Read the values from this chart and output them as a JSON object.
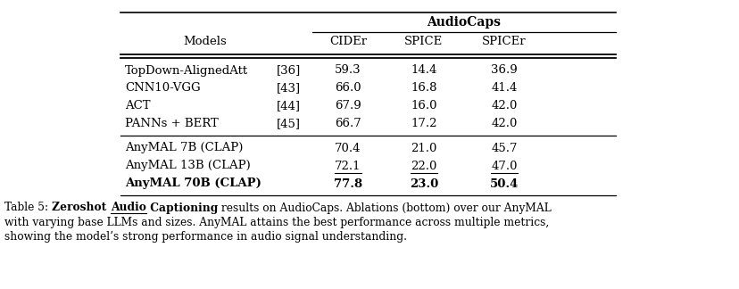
{
  "title_group": "AudioCaps",
  "col_headers": [
    "CIDEr",
    "SPICE",
    "SPICEr"
  ],
  "models_col_header": "Models",
  "rows_group1": [
    {
      "model": "TopDown-AlignedAtt",
      "ref": "[36]",
      "cider": "59.3",
      "spice": "14.4",
      "spicer": "36.9"
    },
    {
      "model": "CNN10-VGG",
      "ref": "[43]",
      "cider": "66.0",
      "spice": "16.8",
      "spicer": "41.4"
    },
    {
      "model": "ACT",
      "ref": "[44]",
      "cider": "67.9",
      "spice": "16.0",
      "spicer": "42.0"
    },
    {
      "model": "PANNs + BERT",
      "ref": "[45]",
      "cider": "66.7",
      "spice": "17.2",
      "spicer": "42.0"
    }
  ],
  "rows_group2": [
    {
      "model": "AnyMAL 7B (CLAP)",
      "cider": "70.4",
      "spice": "21.0",
      "spicer": "45.7",
      "bold": false,
      "underline": false
    },
    {
      "model": "AnyMAL 13B (CLAP)",
      "cider": "72.1",
      "spice": "22.0",
      "spicer": "47.0",
      "bold": false,
      "underline": true
    },
    {
      "model": "AnyMAL 70B (CLAP)",
      "cider": "77.8",
      "spice": "23.0",
      "spicer": "50.4",
      "bold": true,
      "underline": false
    }
  ],
  "figsize": [
    8.29,
    3.24
  ],
  "dpi": 100,
  "font_size": 9.5,
  "cap_font_size": 8.8
}
